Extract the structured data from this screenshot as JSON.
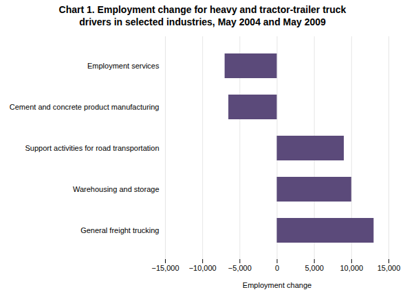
{
  "chart_data": {
    "type": "bar",
    "orientation": "horizontal",
    "title": "Chart 1. Employment change for heavy and tractor-trailer truck\ndrivers in selected industries, May 2004 and May 2009",
    "categories": [
      "General freight trucking",
      "Warehousing and storage",
      "Support activities for road transportation",
      "Cement and concrete product manufacturing",
      "Employment services"
    ],
    "values": [
      13000,
      10000,
      9000,
      -6500,
      -7000
    ],
    "color": "#5b4a7a",
    "xlabel": "Employment change",
    "xlim": [
      -15000,
      15000
    ],
    "xticks": [
      {
        "value": -15000,
        "label": "−15,000"
      },
      {
        "value": -10000,
        "label": "−10,000"
      },
      {
        "value": -5000,
        "label": "−5,000"
      },
      0,
      {
        "value": 5000,
        "label": "5,000"
      },
      {
        "value": 10000,
        "label": "10,000"
      },
      {
        "value": 15000,
        "label": "15,000"
      }
    ],
    "grid": true
  }
}
